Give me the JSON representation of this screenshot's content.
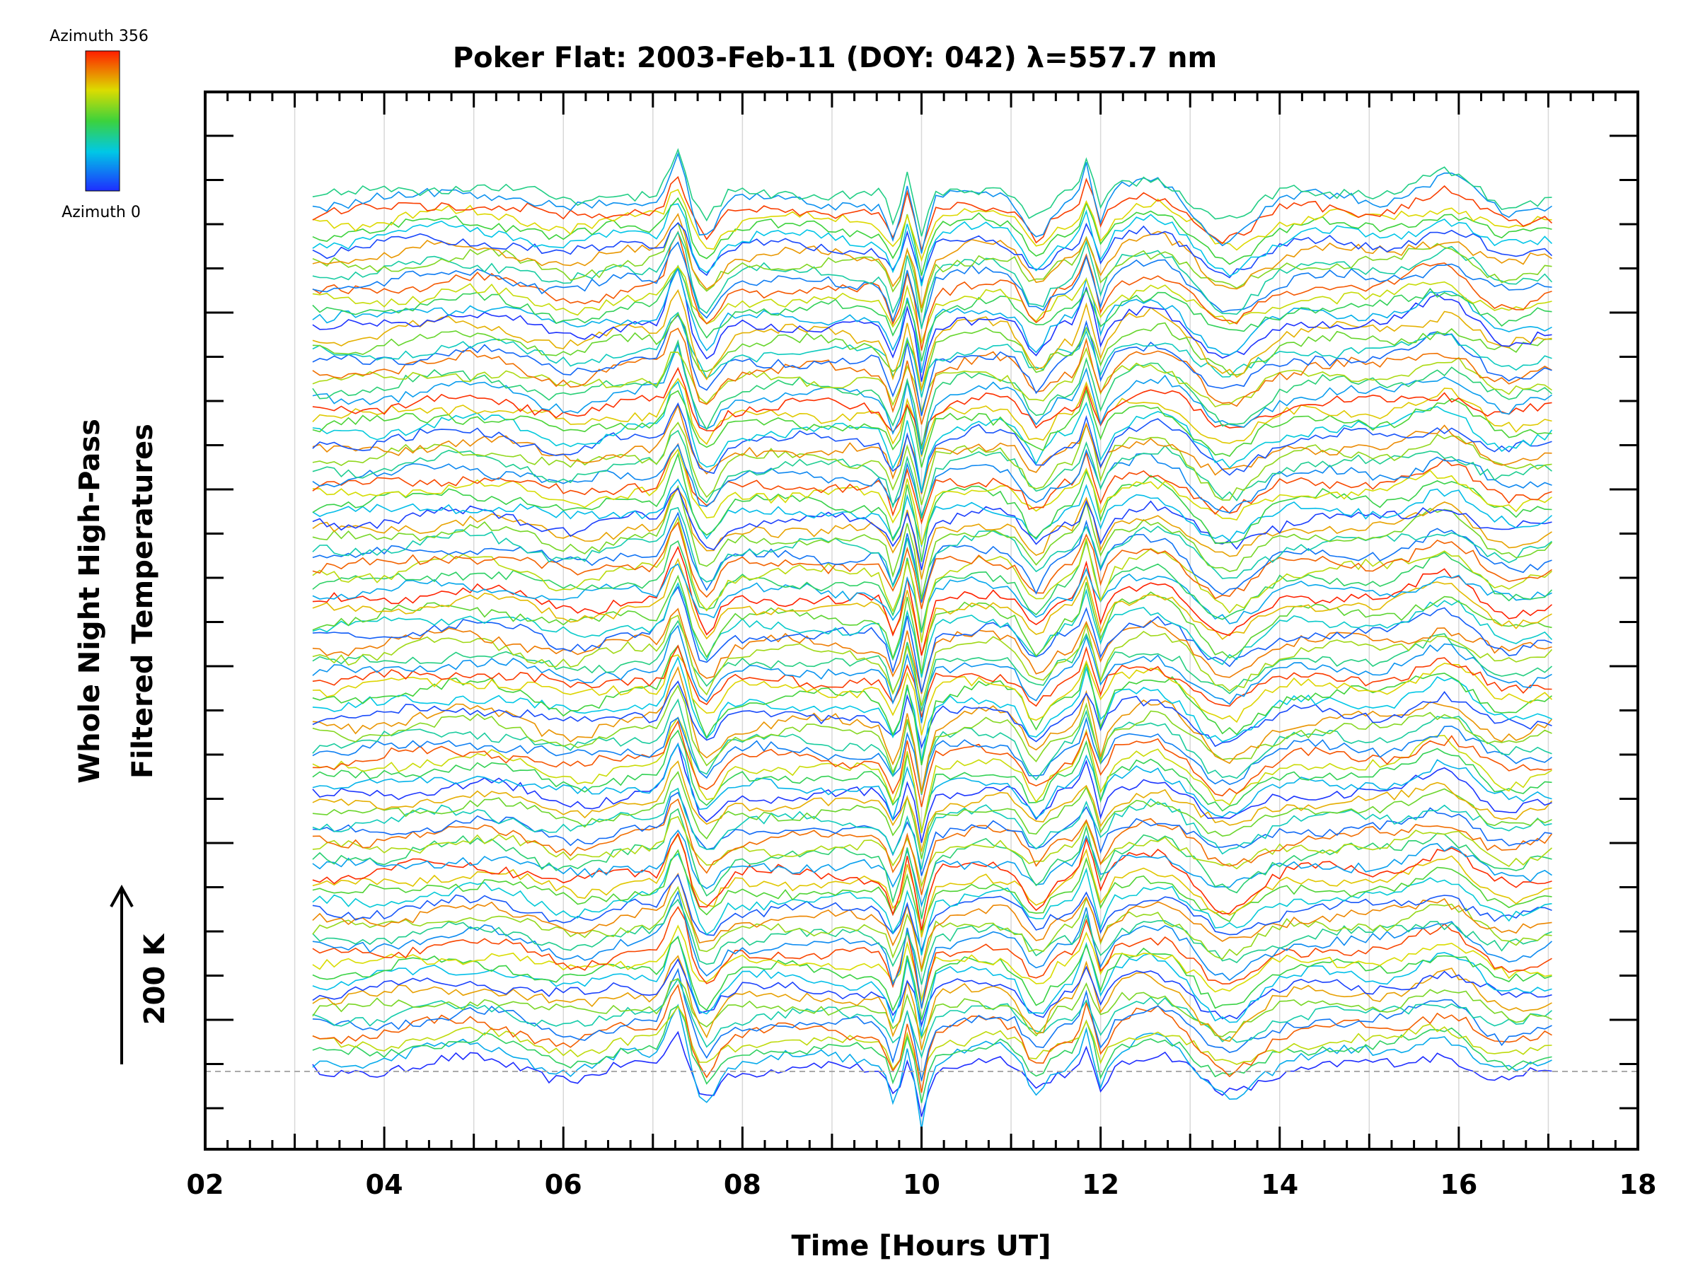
{
  "chart_data": {
    "type": "line",
    "title": "Poker Flat: 2003-Feb-11 (DOY: 042) λ=557.7 nm",
    "xlabel": "Time [Hours UT]",
    "ylabel_line1": "Whole Night High-Pass",
    "ylabel_line2": "Filtered Temperatures",
    "scale_label": "200 K",
    "xlim": [
      2,
      18
    ],
    "x_ticks": [
      2,
      4,
      6,
      8,
      10,
      12,
      14,
      16,
      18
    ],
    "x_tick_labels": [
      "02",
      "04",
      "06",
      "08",
      "10",
      "12",
      "14",
      "16",
      "18"
    ],
    "x_range_data": [
      3.2,
      17.0
    ],
    "grid": "vertical",
    "baseline_dashed": true,
    "series_count": 100,
    "series_offset_k": 25,
    "colorbar": {
      "label_max": "Azimuth 356",
      "label_min": "Azimuth 0",
      "range": [
        0,
        356
      ],
      "colormap": "rainbow (blue→cyan→green→yellow→red)"
    },
    "colors": {
      "baseline": "#aaaaaa",
      "grid": "#d8d8d8",
      "axis": "#000000"
    }
  }
}
